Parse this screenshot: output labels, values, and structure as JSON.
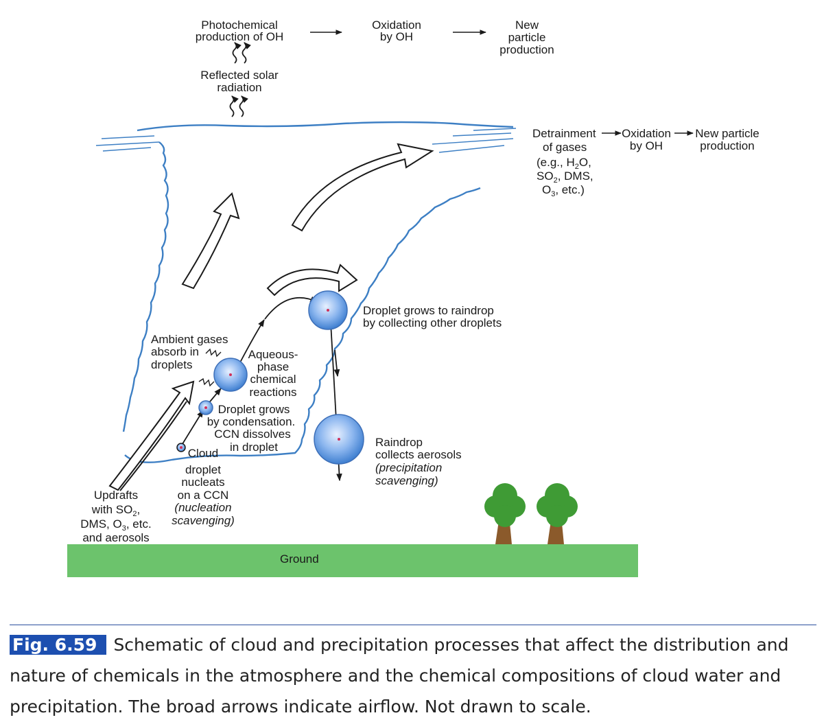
{
  "labels": {
    "photochemical": [
      "Photochemical",
      "production of OH"
    ],
    "oxidation_top": [
      "Oxidation",
      "by OH"
    ],
    "new_particle_top": [
      "New",
      "particle",
      "production"
    ],
    "reflected": [
      "Reflected solar",
      "radiation"
    ],
    "detrainment": [
      "Detrainment",
      "of gases",
      "(e.g., H",
      "O,",
      "SO",
      ", DMS,",
      "O",
      ", etc.)"
    ],
    "oxidation_right": [
      "Oxidation",
      "by OH"
    ],
    "new_particle_right": [
      "New particle",
      "production"
    ],
    "droplet_raindrop": [
      "Droplet grows to raindrop",
      "by collecting other droplets"
    ],
    "ambient": [
      "Ambient gases",
      "absorb in",
      "droplets"
    ],
    "aqueous": [
      "Aqueous-",
      "phase",
      "chemical",
      "reactions"
    ],
    "droplet_grows": [
      "Droplet grows",
      "by condensation.",
      "CCN dissolves",
      "in droplet"
    ],
    "cloud_droplet": [
      "Cloud",
      "droplet",
      "nucleats",
      "on a CCN",
      "(nucleation",
      "scavenging)"
    ],
    "raindrop_collects": [
      "Raindrop",
      "collects aerosols",
      "(precipitation",
      "scavenging)"
    ],
    "updrafts": [
      "Updrafts",
      "with SO",
      ",",
      "DMS, O",
      ", etc.",
      "and aerosols"
    ],
    "ground": "Ground",
    "sub2": "2",
    "sub3": "3"
  },
  "caption": {
    "figure_label": "Fig. 6.59",
    "text": "Schematic of cloud and precipitation processes that affect the distribution and nature of chemicals in the atmosphere and the chemical compositions of cloud water and precipitation. The broad arrows indicate airflow. Not drawn to scale."
  },
  "colors": {
    "cloud_outline": "#3d7fc4",
    "ground": "#6cc36c",
    "droplet": "#5b9ae0",
    "tree_canopy": "#3f9b35",
    "tree_trunk": "#8b5a2b",
    "fig_label_bg": "#1d4fb0"
  }
}
